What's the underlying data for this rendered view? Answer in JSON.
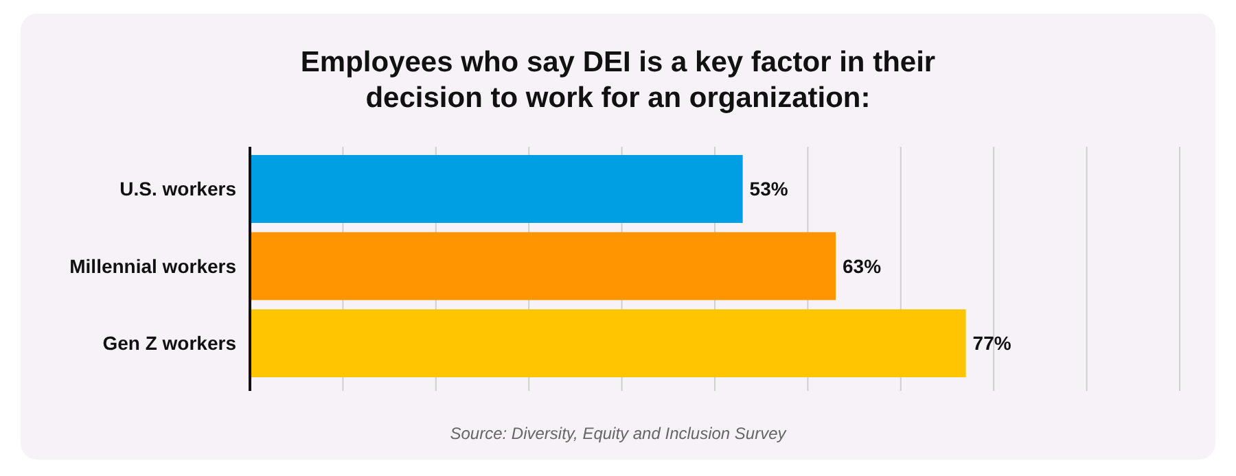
{
  "chart_data": {
    "type": "bar",
    "orientation": "horizontal",
    "title": "Employees who say DEI is a key factor in their decision to work for an organization:",
    "categories": [
      "U.S. workers",
      "Millennial workers",
      "Gen Z workers"
    ],
    "values": [
      53,
      63,
      77
    ],
    "colors": [
      "#009fe3",
      "#ff9500",
      "#ffc500"
    ],
    "value_labels": [
      "53%",
      "63%",
      "77%"
    ],
    "xlim": [
      0,
      100
    ],
    "xticks": [
      {
        "value": 0,
        "label": null
      },
      {
        "value": 10,
        "label": null
      },
      {
        "value": 20,
        "label": null
      },
      {
        "value": 30,
        "label": null
      },
      {
        "value": 40,
        "label": null
      },
      {
        "value": 50,
        "label": null
      },
      {
        "value": 60,
        "label": null
      },
      {
        "value": 70,
        "label": null
      },
      {
        "value": 80,
        "label": null
      },
      {
        "value": 90,
        "label": null
      },
      {
        "value": 100,
        "label": null
      }
    ],
    "grid": "x",
    "annotations": [
      "Source: Diversity, Equity and Inclusion Survey"
    ]
  }
}
